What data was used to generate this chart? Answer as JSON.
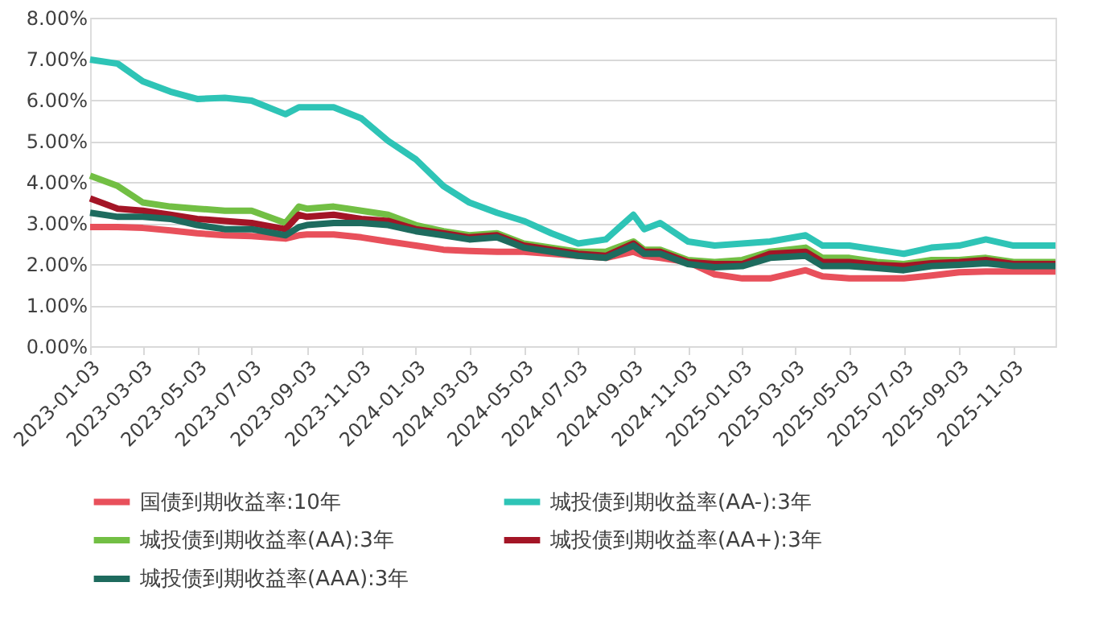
{
  "chart_data": {
    "type": "line",
    "x": [
      "2023-01-03",
      "2023-02-03",
      "2023-03-03",
      "2023-04-03",
      "2023-05-03",
      "2023-06-03",
      "2023-07-03",
      "2023-08-10",
      "2023-08-25",
      "2023-09-03",
      "2023-10-03",
      "2023-11-03",
      "2023-12-03",
      "2024-01-03",
      "2024-02-03",
      "2024-03-03",
      "2024-04-03",
      "2024-05-03",
      "2024-06-03",
      "2024-07-03",
      "2024-08-03",
      "2024-09-03",
      "2024-09-15",
      "2024-10-03",
      "2024-11-03",
      "2024-12-03",
      "2025-01-03",
      "2025-02-03",
      "2025-03-15",
      "2025-04-03",
      "2025-05-03",
      "2025-06-03",
      "2025-07-03",
      "2025-08-03",
      "2025-09-03",
      "2025-10-03",
      "2025-11-03",
      "2025-12-20"
    ],
    "series": [
      {
        "name": "国债到期收益率:10年",
        "color": "#e8505b",
        "values": [
          2.9,
          2.9,
          2.88,
          2.82,
          2.75,
          2.7,
          2.68,
          2.62,
          2.7,
          2.72,
          2.72,
          2.65,
          2.55,
          2.45,
          2.35,
          2.32,
          2.3,
          2.3,
          2.25,
          2.2,
          2.15,
          2.3,
          2.2,
          2.15,
          2.05,
          1.75,
          1.65,
          1.65,
          1.85,
          1.7,
          1.65,
          1.65,
          1.65,
          1.72,
          1.8,
          1.82,
          1.82,
          1.82
        ]
      },
      {
        "name": "城投债到期收益率(AA-):3年",
        "color": "#2ec4b6",
        "values": [
          6.98,
          6.88,
          6.45,
          6.2,
          6.02,
          6.05,
          5.98,
          5.65,
          5.82,
          5.82,
          5.82,
          5.55,
          5.0,
          4.55,
          3.9,
          3.5,
          3.25,
          3.05,
          2.75,
          2.5,
          2.6,
          3.2,
          2.85,
          3.0,
          2.55,
          2.45,
          2.5,
          2.55,
          2.7,
          2.45,
          2.45,
          2.35,
          2.25,
          2.4,
          2.45,
          2.6,
          2.45,
          2.45
        ]
      },
      {
        "name": "城投债到期收益率(AA):3年",
        "color": "#72bf44",
        "values": [
          4.15,
          3.9,
          3.5,
          3.4,
          3.35,
          3.3,
          3.3,
          3.0,
          3.4,
          3.35,
          3.4,
          3.3,
          3.2,
          2.95,
          2.8,
          2.7,
          2.75,
          2.5,
          2.4,
          2.3,
          2.3,
          2.55,
          2.35,
          2.35,
          2.1,
          2.05,
          2.1,
          2.3,
          2.4,
          2.15,
          2.15,
          2.05,
          2.0,
          2.1,
          2.1,
          2.15,
          2.05,
          2.05
        ]
      },
      {
        "name": "城投债到期收益率(AA+):3年",
        "color": "#a31526",
        "values": [
          3.6,
          3.35,
          3.3,
          3.2,
          3.1,
          3.05,
          3.0,
          2.85,
          3.2,
          3.15,
          3.2,
          3.1,
          3.05,
          2.85,
          2.75,
          2.65,
          2.7,
          2.45,
          2.35,
          2.25,
          2.2,
          2.5,
          2.3,
          2.3,
          2.05,
          2.0,
          2.0,
          2.25,
          2.3,
          2.05,
          2.05,
          1.98,
          1.95,
          2.02,
          2.05,
          2.1,
          2.0,
          2.0
        ]
      },
      {
        "name": "城投债到期收益率(AAA):3年",
        "color": "#1e6b5e",
        "values": [
          3.25,
          3.15,
          3.15,
          3.1,
          2.95,
          2.85,
          2.85,
          2.7,
          2.9,
          2.95,
          3.0,
          3.0,
          2.95,
          2.8,
          2.7,
          2.6,
          2.65,
          2.4,
          2.3,
          2.2,
          2.15,
          2.45,
          2.25,
          2.25,
          2.0,
          1.92,
          1.95,
          2.15,
          2.2,
          1.95,
          1.95,
          1.9,
          1.85,
          1.95,
          1.98,
          2.02,
          1.95,
          1.95
        ]
      }
    ],
    "xlim": [
      "2023-01-03",
      "2025-12-20"
    ],
    "xticks": [
      "2023-01-03",
      "2023-03-03",
      "2023-05-03",
      "2023-07-03",
      "2023-09-03",
      "2023-11-03",
      "2024-01-03",
      "2024-03-03",
      "2024-05-03",
      "2024-07-03",
      "2024-09-03",
      "2024-11-03",
      "2025-01-03",
      "2025-03-03",
      "2025-05-03",
      "2025-07-03",
      "2025-09-03",
      "2025-11-03"
    ],
    "ylim": [
      0,
      8
    ],
    "yticks": [
      {
        "value": 0,
        "label": "0.00%"
      },
      {
        "value": 1,
        "label": "1.00%"
      },
      {
        "value": 2,
        "label": "2.00%"
      },
      {
        "value": 3,
        "label": "3.00%"
      },
      {
        "value": 4,
        "label": "4.00%"
      },
      {
        "value": 5,
        "label": "5.00%"
      },
      {
        "value": 6,
        "label": "6.00%"
      },
      {
        "value": 7,
        "label": "7.00%"
      },
      {
        "value": 8,
        "label": "8.00%"
      }
    ],
    "grid": "y",
    "legend": "bottom",
    "marker": "none",
    "line_style": "solid"
  }
}
